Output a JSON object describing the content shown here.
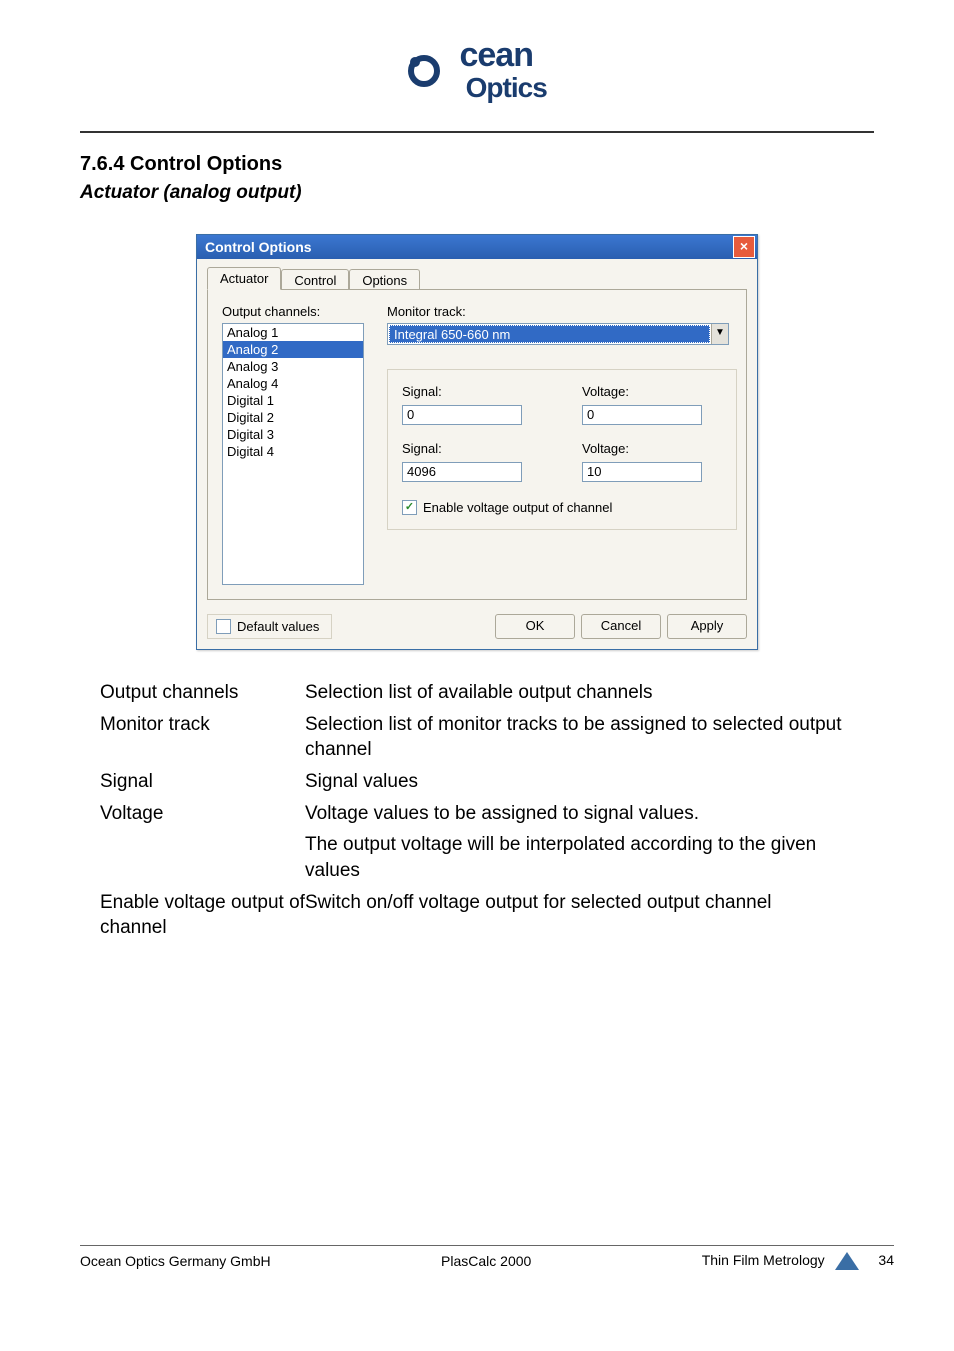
{
  "logo": {
    "line1": "cean",
    "line2": "Optics"
  },
  "section": {
    "number": "7.6.4 Control Options",
    "subtitle": "Actuator (analog output)"
  },
  "dialog": {
    "title": "Control Options",
    "tabs": [
      "Actuator",
      "Control",
      "Options"
    ],
    "active_tab_index": 0,
    "labels": {
      "output_channels": "Output channels:",
      "monitor_track": "Monitor track:",
      "signal": "Signal:",
      "voltage": "Voltage:",
      "enable_voltage": "Enable voltage output of channel",
      "default_values": "Default values",
      "ok": "OK",
      "cancel": "Cancel",
      "apply": "Apply"
    },
    "output_channels": [
      "Analog 1",
      "Analog 2",
      "Analog 3",
      "Analog 4",
      "Digital 1",
      "Digital 2",
      "Digital 3",
      "Digital 4"
    ],
    "selected_channel_index": 1,
    "monitor_track_value": "Integral 650-660 nm",
    "signal1": "0",
    "voltage1": "0",
    "signal2": "4096",
    "voltage2": "10",
    "enable_voltage_checked": true,
    "default_values_checked": false
  },
  "descriptions": [
    {
      "term": "Output channels",
      "def": "Selection list of available output channels"
    },
    {
      "term": "Monitor track",
      "def": "Selection list of monitor tracks to be assigned to selected output channel"
    },
    {
      "term": "Signal",
      "def": "Signal values"
    },
    {
      "term": "Voltage",
      "def": "Voltage values to be assigned to signal values."
    },
    {
      "term": "",
      "def": "The output voltage will be interpolated according to the given values"
    },
    {
      "term": "Enable voltage output of channel",
      "def": "Switch on/off voltage output for selected output channel"
    }
  ],
  "footer": {
    "left": "Ocean Optics Germany GmbH",
    "center": "PlasCalc 2000",
    "right": "Thin Film Metrology",
    "page": "34"
  }
}
